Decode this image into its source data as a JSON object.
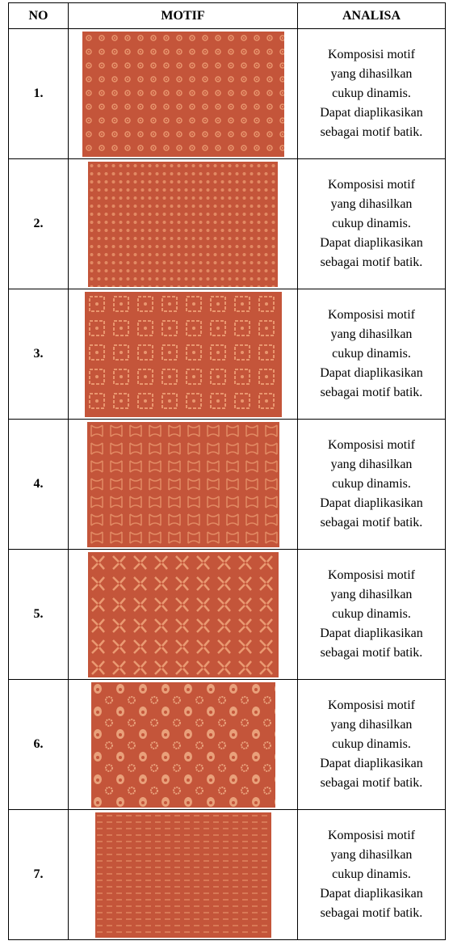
{
  "table": {
    "headers": [
      "NO",
      "MOTIF",
      "ANALISA"
    ],
    "rows": [
      {
        "no": "1.",
        "analisa": [
          "Komposisi motif",
          "yang dihasilkan",
          "cukup dinamis.",
          "Dapat diaplikasikan",
          "sebagai motif batik."
        ]
      },
      {
        "no": "2.",
        "analisa": [
          "Komposisi motif",
          "yang dihasilkan",
          "cukup dinamis.",
          "Dapat diaplikasikan",
          "sebagai motif batik."
        ]
      },
      {
        "no": "3.",
        "analisa": [
          "Komposisi motif",
          "yang dihasilkan",
          "cukup dinamis.",
          "Dapat diaplikasikan",
          "sebagai motif batik."
        ]
      },
      {
        "no": "4.",
        "analisa": [
          "Komposisi motif",
          "yang dihasilkan",
          "cukup dinamis.",
          "Dapat diaplikasikan",
          "sebagai motif batik."
        ]
      },
      {
        "no": "5.",
        "analisa": [
          "Komposisi motif",
          "yang dihasilkan",
          "cukup dinamis.",
          "Dapat diaplikasikan",
          "sebagai motif batik."
        ]
      },
      {
        "no": "6.",
        "analisa": [
          "Komposisi motif",
          "yang dihasilkan",
          "cukup dinamis.",
          "Dapat diaplikasikan",
          "sebagai motif batik."
        ]
      },
      {
        "no": "7.",
        "analisa": [
          "Komposisi motif",
          "yang dihasilkan",
          "cukup dinamis.",
          "Dapat diaplikasikan",
          "sebagai motif batik."
        ]
      }
    ]
  }
}
